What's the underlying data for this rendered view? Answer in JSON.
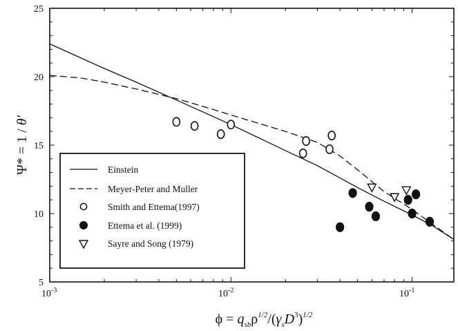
{
  "chart_data": {
    "type": "scatter",
    "title": "",
    "xlabel": {
      "phi": "ϕ",
      "eq": " = ",
      "q": "q",
      "q_sub": "sb",
      "rho": "ρ",
      "rho_exp": "1/2",
      "slash": "/(",
      "gamma": "γ",
      "gamma_sub": "s",
      "D": "D",
      "D_exp": "3",
      "close": ")",
      "close_exp": "1/2"
    },
    "ylabel": {
      "psi": "Ψ*",
      "eq": " = 1 / ",
      "theta": "θ'"
    },
    "x_scale": "log",
    "xlim": [
      0.001,
      0.17
    ],
    "ylim": [
      5,
      25
    ],
    "x_ticks": [
      {
        "value": 0.001,
        "base": "10",
        "exp": "-3"
      },
      {
        "value": 0.01,
        "base": "10",
        "exp": "-2"
      },
      {
        "value": 0.1,
        "base": "10",
        "exp": "-1"
      }
    ],
    "y_ticks": [
      5,
      10,
      15,
      20,
      25
    ],
    "grid": false,
    "legend_position": "bottom-left",
    "series": [
      {
        "name": "Einstein",
        "kind": "line",
        "style": "solid",
        "x": [
          0.001,
          0.002,
          0.003,
          0.005,
          0.01,
          0.02,
          0.03,
          0.05,
          0.07,
          0.1,
          0.13,
          0.17
        ],
        "y": [
          22.4,
          20.6,
          19.6,
          18.3,
          16.5,
          14.6,
          13.5,
          11.9,
          10.9,
          9.9,
          9.1,
          8.1
        ]
      },
      {
        "name": "Meyer-Peter and Muller",
        "kind": "line",
        "style": "dashed",
        "x": [
          0.001,
          0.0015,
          0.002,
          0.003,
          0.005,
          0.008,
          0.01,
          0.02,
          0.03,
          0.04,
          0.05,
          0.07,
          0.1,
          0.13,
          0.17
        ],
        "y": [
          20.1,
          19.9,
          19.6,
          19.1,
          18.4,
          17.6,
          17.2,
          16.0,
          15.2,
          14.2,
          13.2,
          11.6,
          10.3,
          9.2,
          8.1
        ]
      },
      {
        "name": "Smith and Ettema(1997)",
        "kind": "points",
        "marker": "circle-open",
        "x": [
          0.005,
          0.0063,
          0.0088,
          0.01,
          0.025,
          0.026,
          0.035,
          0.036
        ],
        "y": [
          16.7,
          16.4,
          15.8,
          16.5,
          14.4,
          15.3,
          14.7,
          15.7
        ]
      },
      {
        "name": "Ettema et al. (1999)",
        "kind": "points",
        "marker": "circle-filled",
        "x": [
          0.04,
          0.047,
          0.058,
          0.063,
          0.095,
          0.1,
          0.105,
          0.125
        ],
        "y": [
          9.0,
          11.5,
          10.5,
          9.8,
          11.0,
          10.0,
          11.4,
          9.4
        ]
      },
      {
        "name": "Sayre and Song (1979)",
        "kind": "points",
        "marker": "triangle-down-open",
        "x": [
          0.06,
          0.08,
          0.093
        ],
        "y": [
          11.9,
          11.2,
          11.7
        ]
      }
    ]
  }
}
